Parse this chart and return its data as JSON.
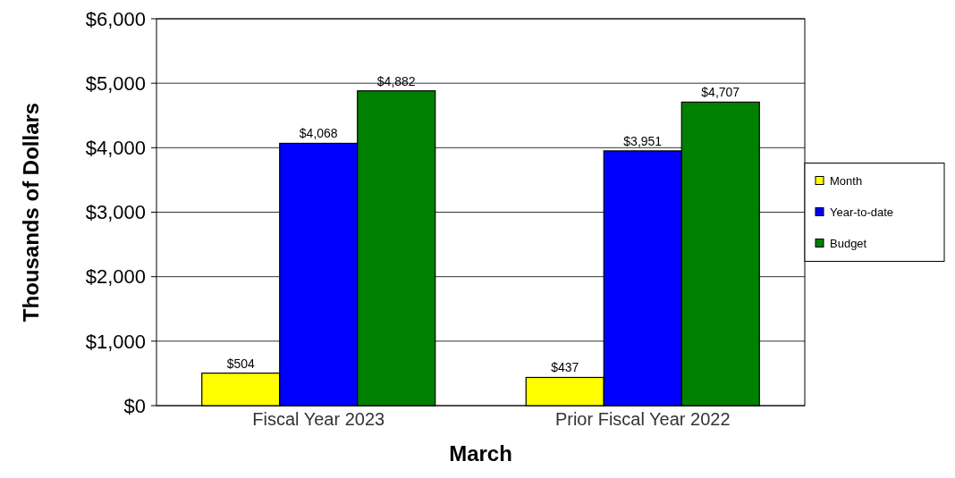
{
  "chart_data": {
    "type": "bar",
    "xlabel": "March",
    "ylabel": "Thousands of Dollars",
    "categories": [
      "Fiscal Year 2023",
      "Prior Fiscal Year 2022"
    ],
    "series": [
      {
        "name": "Month",
        "color": "#ffff00",
        "values": [
          504,
          437
        ]
      },
      {
        "name": "Year-to-date",
        "color": "#0000ff",
        "values": [
          4068,
          3951
        ]
      },
      {
        "name": "Budget",
        "color": "#008000",
        "values": [
          4882,
          4707
        ]
      }
    ],
    "ylim": [
      0,
      6000
    ],
    "yticks": [
      {
        "value": 0,
        "label": "$0"
      },
      {
        "value": 1000,
        "label": "$1,000"
      },
      {
        "value": 2000,
        "label": "$2,000"
      },
      {
        "value": 3000,
        "label": "$3,000"
      },
      {
        "value": 4000,
        "label": "$4,000"
      },
      {
        "value": 5000,
        "label": "$5,000"
      },
      {
        "value": 6000,
        "label": "$6,000"
      }
    ],
    "value_labels": [
      [
        "$504",
        "$437"
      ],
      [
        "$4,068",
        "$3,951"
      ],
      [
        "$4,882",
        "$4,707"
      ]
    ],
    "grid": "y",
    "legend": "right"
  }
}
